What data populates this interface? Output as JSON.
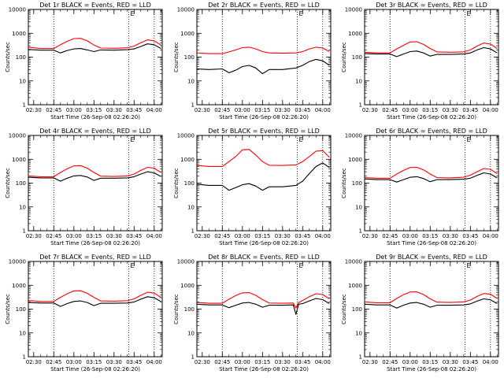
{
  "figure": {
    "xlabel": "Start Time (26-Sep-08 02:26:20)",
    "ylabel": "Counts/sec",
    "x_tick_labels": [
      "02:30",
      "02:45",
      "03:00",
      "03:15",
      "03:30",
      "03:45",
      "04:00"
    ],
    "y_tick_labels": [
      "1",
      "10",
      "100",
      "1000",
      "10000"
    ],
    "corner_mark": "E",
    "colors": {
      "events": "#000000",
      "lld": "#ff0000"
    }
  },
  "chart_data": [
    {
      "type": "line",
      "title": "Det 1r BLACK = Events, RED = LLD",
      "xlabel": "Start Time (26-Sep-08 02:26:20)",
      "ylabel": "Counts/sec",
      "x_range": [
        "02:26",
        "04:06"
      ],
      "ylim": [
        1,
        10000
      ],
      "yscale": "log",
      "markers_x": [
        "02:45",
        "03:41",
        "04:00"
      ],
      "x": [
        "02:26",
        "02:35",
        "02:45",
        "02:50",
        "02:55",
        "03:00",
        "03:05",
        "03:10",
        "03:15",
        "03:20",
        "03:30",
        "03:40",
        "03:45",
        "03:50",
        "03:55",
        "04:00",
        "04:05"
      ],
      "series": [
        {
          "name": "LLD",
          "color": "#ff0000",
          "values": [
            260,
            230,
            230,
            330,
            460,
            600,
            610,
            480,
            320,
            240,
            235,
            245,
            290,
            400,
            530,
            480,
            320
          ]
        },
        {
          "name": "Events",
          "color": "#000000",
          "values": [
            210,
            195,
            195,
            150,
            190,
            220,
            230,
            200,
            170,
            200,
            195,
            205,
            220,
            280,
            360,
            330,
            230
          ]
        }
      ]
    },
    {
      "type": "line",
      "title": "Det 2r BLACK = Events, RED = LLD",
      "xlabel": "Start Time (26-Sep-08 02:26:20)",
      "ylabel": "Counts/sec",
      "x_range": [
        "02:26",
        "04:06"
      ],
      "ylim": [
        1,
        10000
      ],
      "yscale": "log",
      "markers_x": [
        "02:45",
        "03:41",
        "04:00"
      ],
      "x": [
        "02:26",
        "02:35",
        "02:45",
        "02:50",
        "02:55",
        "03:00",
        "03:05",
        "03:10",
        "03:15",
        "03:20",
        "03:30",
        "03:40",
        "03:45",
        "03:50",
        "03:55",
        "04:00",
        "04:05"
      ],
      "series": [
        {
          "name": "LLD",
          "color": "#ff0000",
          "values": [
            150,
            140,
            140,
            165,
            200,
            250,
            260,
            220,
            170,
            150,
            145,
            150,
            170,
            220,
            260,
            240,
            170
          ]
        },
        {
          "name": "Events",
          "color": "#000000",
          "values": [
            32,
            30,
            32,
            22,
            28,
            40,
            45,
            35,
            20,
            30,
            30,
            35,
            45,
            65,
            80,
            70,
            45
          ]
        }
      ]
    },
    {
      "type": "line",
      "title": "Det 3r BLACK = Events, RED = LLD",
      "xlabel": "Start Time (26-Sep-08 02:26:20)",
      "ylabel": "Counts/sec",
      "x_range": [
        "02:26",
        "04:06"
      ],
      "ylim": [
        1,
        10000
      ],
      "yscale": "log",
      "markers_x": [
        "02:45",
        "03:41",
        "04:00"
      ],
      "x": [
        "02:26",
        "02:35",
        "02:45",
        "02:50",
        "02:55",
        "03:00",
        "03:05",
        "03:10",
        "03:15",
        "03:20",
        "03:30",
        "03:40",
        "03:45",
        "03:50",
        "03:55",
        "04:00",
        "04:05"
      ],
      "series": [
        {
          "name": "LLD",
          "color": "#ff0000",
          "values": [
            160,
            150,
            150,
            220,
            310,
            430,
            440,
            340,
            230,
            165,
            160,
            165,
            200,
            290,
            390,
            350,
            230
          ]
        },
        {
          "name": "Events",
          "color": "#000000",
          "values": [
            140,
            135,
            135,
            105,
            135,
            170,
            180,
            150,
            110,
            130,
            130,
            135,
            150,
            200,
            250,
            220,
            150
          ]
        }
      ]
    },
    {
      "type": "line",
      "title": "Det 4r BLACK = Events, RED = LLD",
      "xlabel": "Start Time (26-Sep-08 02:26:20)",
      "ylabel": "Counts/sec",
      "x_range": [
        "02:26",
        "04:06"
      ],
      "ylim": [
        1,
        10000
      ],
      "yscale": "log",
      "markers_x": [
        "02:45",
        "03:41",
        "04:00"
      ],
      "x": [
        "02:26",
        "02:35",
        "02:45",
        "02:50",
        "02:55",
        "03:00",
        "03:05",
        "03:10",
        "03:15",
        "03:20",
        "03:30",
        "03:40",
        "03:45",
        "03:50",
        "03:55",
        "04:00",
        "04:05"
      ],
      "series": [
        {
          "name": "LLD",
          "color": "#ff0000",
          "values": [
            200,
            185,
            185,
            280,
            400,
            530,
            540,
            420,
            280,
            195,
            190,
            200,
            240,
            340,
            460,
            420,
            280
          ]
        },
        {
          "name": "Events",
          "color": "#000000",
          "values": [
            175,
            165,
            165,
            120,
            160,
            200,
            210,
            180,
            130,
            160,
            160,
            165,
            185,
            240,
            300,
            270,
            190
          ]
        }
      ]
    },
    {
      "type": "line",
      "title": "Det 5r BLACK = Events, RED = LLD",
      "xlabel": "Start Time (26-Sep-08 02:26:20)",
      "ylabel": "Counts/sec",
      "x_range": [
        "02:26",
        "04:06"
      ],
      "ylim": [
        1,
        10000
      ],
      "yscale": "log",
      "markers_x": [
        "02:45",
        "03:41",
        "04:00"
      ],
      "x": [
        "02:26",
        "02:35",
        "02:45",
        "02:50",
        "02:55",
        "03:00",
        "03:05",
        "03:10",
        "03:15",
        "03:20",
        "03:30",
        "03:40",
        "03:45",
        "03:50",
        "03:55",
        "04:00",
        "04:05"
      ],
      "series": [
        {
          "name": "LLD",
          "color": "#ff0000",
          "values": [
            550,
            500,
            500,
            800,
            1300,
            2500,
            2600,
            1500,
            800,
            560,
            550,
            580,
            800,
            1300,
            2200,
            2300,
            1200
          ]
        },
        {
          "name": "Events",
          "color": "#000000",
          "values": [
            90,
            80,
            80,
            50,
            65,
            85,
            95,
            75,
            50,
            70,
            70,
            80,
            120,
            250,
            500,
            700,
            450
          ]
        }
      ]
    },
    {
      "type": "line",
      "title": "Det 6r BLACK = Events, RED = LLD",
      "xlabel": "Start Time (26-Sep-08 02:26:20)",
      "ylabel": "Counts/sec",
      "x_range": [
        "02:26",
        "04:06"
      ],
      "ylim": [
        1,
        10000
      ],
      "yscale": "log",
      "markers_x": [
        "02:45",
        "03:41",
        "04:00"
      ],
      "x": [
        "02:26",
        "02:35",
        "02:45",
        "02:50",
        "02:55",
        "03:00",
        "03:05",
        "03:10",
        "03:15",
        "03:20",
        "03:30",
        "03:40",
        "03:45",
        "03:50",
        "03:55",
        "04:00",
        "04:05"
      ],
      "series": [
        {
          "name": "LLD",
          "color": "#ff0000",
          "values": [
            170,
            160,
            160,
            240,
            340,
            450,
            460,
            360,
            240,
            170,
            165,
            175,
            215,
            300,
            410,
            380,
            250
          ]
        },
        {
          "name": "Events",
          "color": "#000000",
          "values": [
            150,
            140,
            140,
            110,
            140,
            175,
            185,
            155,
            115,
            140,
            140,
            145,
            160,
            210,
            270,
            240,
            165
          ]
        }
      ]
    },
    {
      "type": "line",
      "title": "Det 7r BLACK = Events, RED = LLD",
      "xlabel": "Start Time (26-Sep-08 02:26:20)",
      "ylabel": "Counts/sec",
      "x_range": [
        "02:26",
        "04:06"
      ],
      "ylim": [
        1,
        10000
      ],
      "yscale": "log",
      "markers_x": [
        "02:45",
        "03:41",
        "04:00"
      ],
      "x": [
        "02:26",
        "02:35",
        "02:45",
        "02:50",
        "02:55",
        "03:00",
        "03:05",
        "03:10",
        "03:15",
        "03:20",
        "03:30",
        "03:40",
        "03:45",
        "03:50",
        "03:55",
        "04:00",
        "04:05"
      ],
      "series": [
        {
          "name": "LLD",
          "color": "#ff0000",
          "values": [
            230,
            210,
            210,
            310,
            440,
            580,
            590,
            460,
            310,
            220,
            215,
            225,
            270,
            380,
            510,
            470,
            310
          ]
        },
        {
          "name": "Events",
          "color": "#000000",
          "values": [
            190,
            180,
            180,
            130,
            170,
            210,
            220,
            190,
            140,
            175,
            175,
            180,
            200,
            260,
            330,
            300,
            210
          ]
        }
      ]
    },
    {
      "type": "line",
      "title": "Det 8r BLACK = Events, RED = LLD",
      "xlabel": "Start Time (26-Sep-08 02:26:20)",
      "ylabel": "Counts/sec",
      "x_range": [
        "02:26",
        "04:06"
      ],
      "ylim": [
        1,
        10000
      ],
      "yscale": "log",
      "markers_x": [
        "02:45",
        "03:41",
        "04:00"
      ],
      "x": [
        "02:26",
        "02:35",
        "02:45",
        "02:50",
        "02:55",
        "03:00",
        "03:05",
        "03:10",
        "03:15",
        "03:20",
        "03:30",
        "03:38",
        "03:40",
        "03:42",
        "03:45",
        "03:50",
        "03:55",
        "04:00",
        "04:05"
      ],
      "series": [
        {
          "name": "LLD",
          "color": "#ff0000",
          "values": [
            190,
            175,
            175,
            260,
            370,
            480,
            490,
            380,
            250,
            180,
            175,
            180,
            110,
            190,
            230,
            330,
            440,
            410,
            270
          ]
        },
        {
          "name": "Events",
          "color": "#000000",
          "values": [
            160,
            150,
            150,
            115,
            145,
            180,
            190,
            160,
            120,
            145,
            145,
            150,
            60,
            160,
            170,
            220,
            280,
            250,
            170
          ]
        }
      ]
    },
    {
      "type": "line",
      "title": "Det 9r BLACK = Events, RED = LLD",
      "xlabel": "Start Time (26-Sep-08 02:26:20)",
      "ylabel": "Counts/sec",
      "x_range": [
        "02:26",
        "04:06"
      ],
      "ylim": [
        1,
        10000
      ],
      "yscale": "log",
      "markers_x": [
        "02:45",
        "03:41",
        "04:00"
      ],
      "x": [
        "02:26",
        "02:35",
        "02:45",
        "02:50",
        "02:55",
        "03:00",
        "03:05",
        "03:10",
        "03:15",
        "03:20",
        "03:30",
        "03:40",
        "03:45",
        "03:50",
        "03:55",
        "04:00",
        "04:05"
      ],
      "series": [
        {
          "name": "LLD",
          "color": "#ff0000",
          "values": [
            200,
            185,
            185,
            280,
            400,
            520,
            530,
            410,
            270,
            195,
            190,
            200,
            240,
            340,
            450,
            420,
            280
          ]
        },
        {
          "name": "Events",
          "color": "#000000",
          "values": [
            160,
            150,
            150,
            110,
            145,
            180,
            190,
            160,
            120,
            145,
            145,
            150,
            165,
            215,
            270,
            245,
            170
          ]
        }
      ]
    }
  ]
}
